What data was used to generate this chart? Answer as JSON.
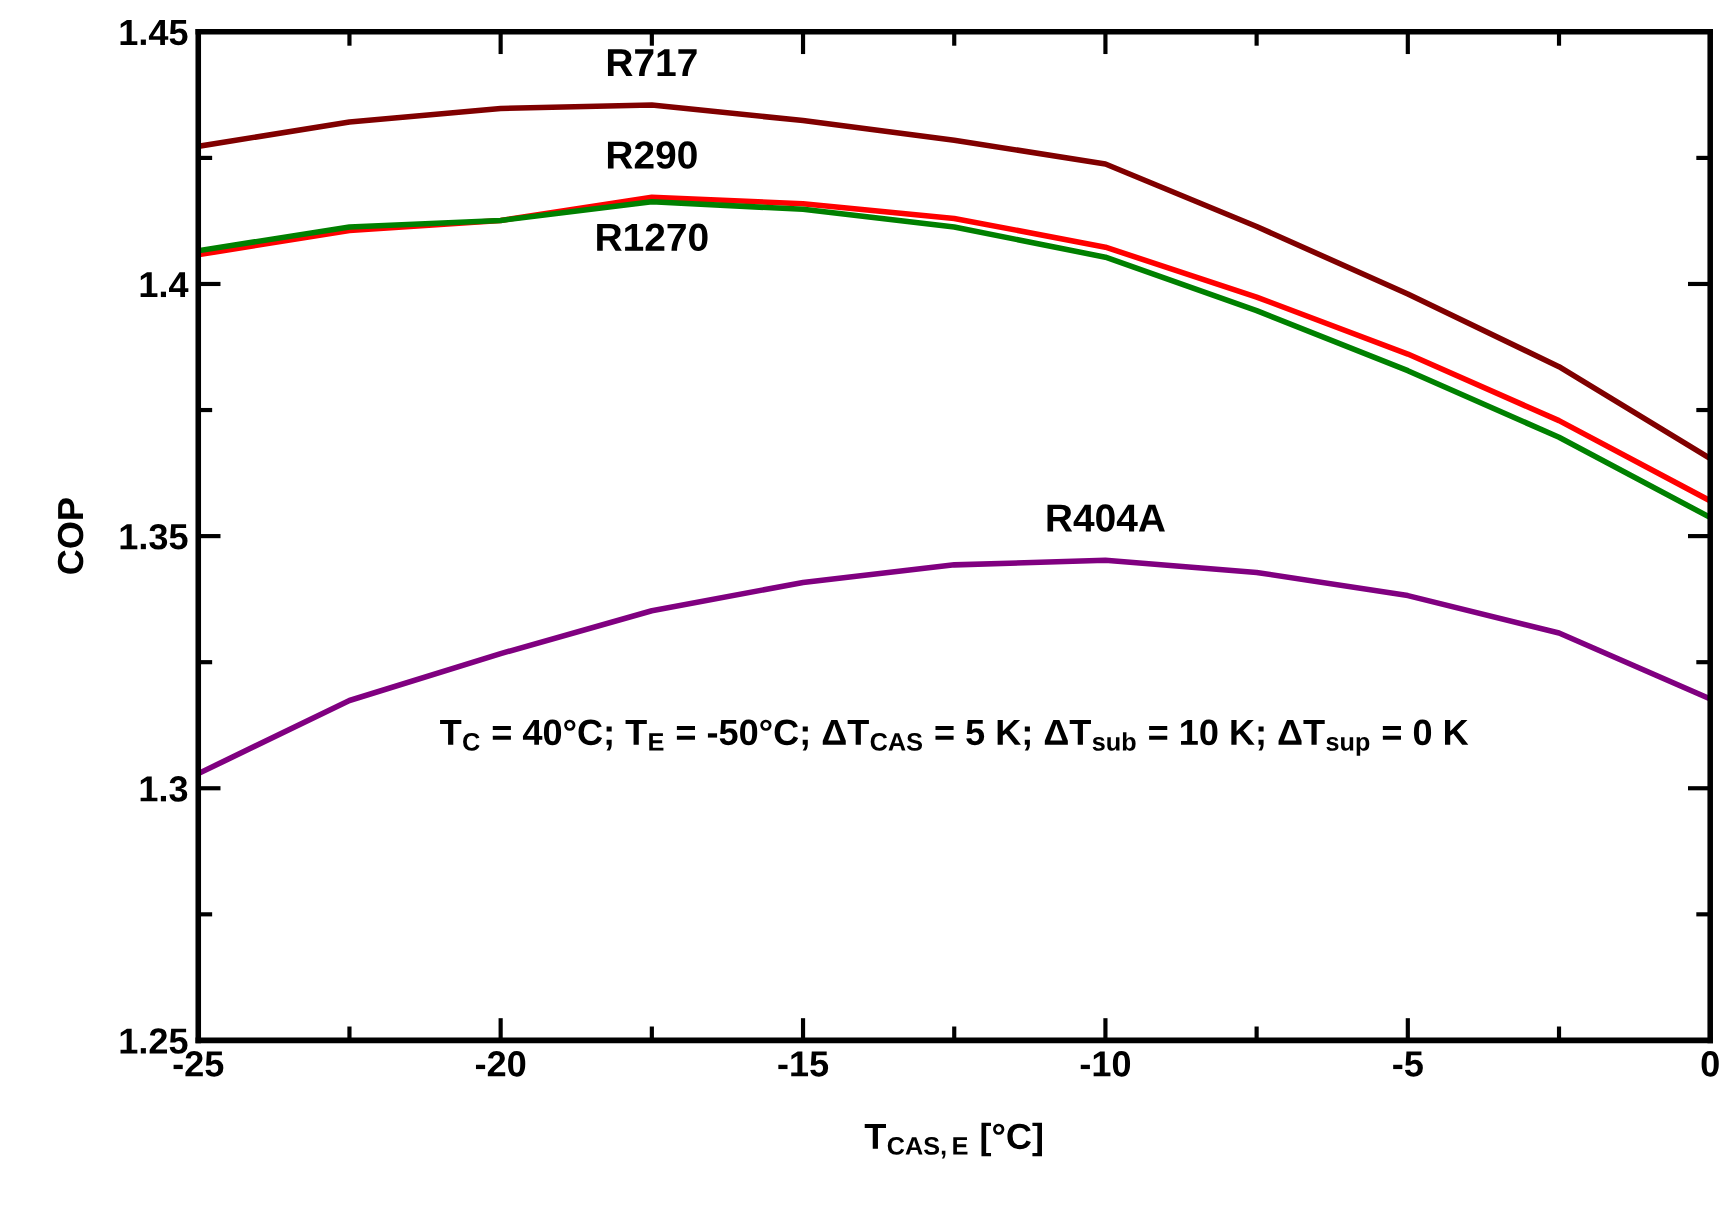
{
  "chart_data": {
    "type": "line",
    "xlabel": "T$_{CAS,E}$ [°C]",
    "ylabel": "COP",
    "x": [
      -25,
      -22.5,
      -20,
      -17.5,
      -15,
      -12.5,
      -10,
      -7.5,
      -5,
      -2.5,
      0
    ],
    "series": [
      {
        "name": "R717",
        "color": "#800000",
        "values": [
          1.4273,
          1.4321,
          1.4348,
          1.4355,
          1.4324,
          1.4285,
          1.4238,
          1.4114,
          1.398,
          1.3836,
          1.3654
        ]
      },
      {
        "name": "R290",
        "color": "#ff0000",
        "values": [
          1.4058,
          1.4106,
          1.4126,
          1.4172,
          1.4159,
          1.413,
          1.4073,
          1.3974,
          1.3861,
          1.3729,
          1.357
        ]
      },
      {
        "name": "R1270",
        "color": "#008000",
        "values": [
          1.4066,
          1.4113,
          1.4126,
          1.4163,
          1.4148,
          1.4113,
          1.4053,
          1.3947,
          1.3828,
          1.3696,
          1.3537
        ]
      },
      {
        "name": "R404A",
        "color": "#800080",
        "values": [
          1.3029,
          1.3174,
          1.3267,
          1.3352,
          1.3408,
          1.3443,
          1.3452,
          1.3428,
          1.3382,
          1.3308,
          1.3177
        ]
      }
    ],
    "annotations": [
      "T$_{C}$ = 40°C; T$_{E}$ = -50°C; ΔT$_{CAS}$ = 5 K; ΔT$_{sub}$ = 10 K; ΔT$_{sup}$ = 0 K"
    ],
    "xlim": [
      -25,
      0
    ],
    "xticks": [
      -25,
      -20,
      -15,
      -10,
      -5,
      0
    ],
    "ylim": [
      1.25,
      1.45
    ],
    "yticks": [
      1.25,
      1.3,
      1.35,
      1.4,
      1.45
    ],
    "grid": false,
    "legend": false,
    "marker": "none",
    "line_style": "solid"
  }
}
